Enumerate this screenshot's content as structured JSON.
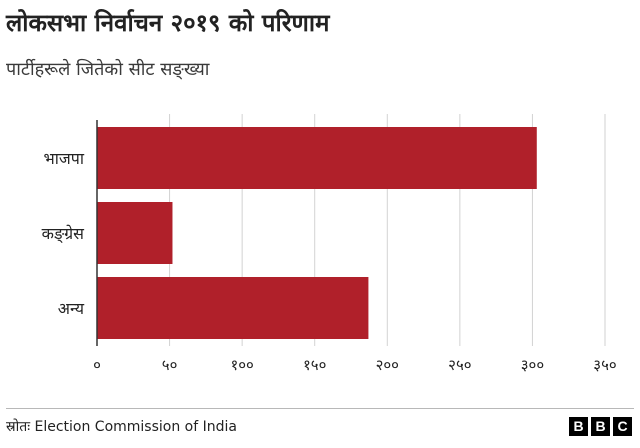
{
  "chart_data": {
    "type": "bar",
    "orientation": "horizontal",
    "title": "लोकसभा निर्वाचन २०१९ को परिणाम",
    "subtitle": "पार्टीहरूले जितेको सीट सङ्ख्या",
    "categories": [
      "भाजपा",
      "कङ्ग्रेस",
      "अन्य"
    ],
    "values": [
      303,
      52,
      187
    ],
    "xlim": [
      0,
      350
    ],
    "xticks": [
      0,
      50,
      100,
      150,
      200,
      250,
      300,
      350
    ],
    "xtick_labels": [
      "०",
      "५०",
      "१००",
      "१५०",
      "२००",
      "२५०",
      "३००",
      "३५०"
    ],
    "grid": true,
    "bar_color": "#b0202a",
    "grid_color": "#d2d2d2"
  },
  "footer": {
    "source": "स्रोतः Election Commission of India",
    "logo_letters": [
      "B",
      "B",
      "C"
    ]
  }
}
